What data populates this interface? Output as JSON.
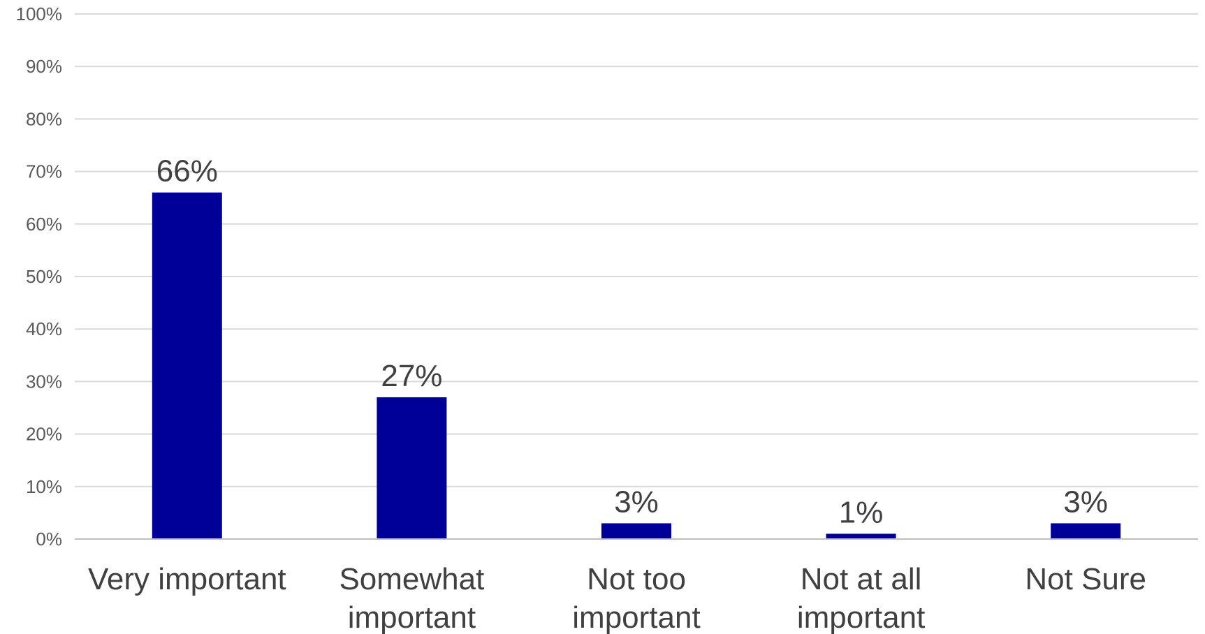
{
  "chart_data": {
    "type": "bar",
    "title": "",
    "xlabel": "",
    "ylabel": "",
    "categories": [
      [
        "Very important"
      ],
      [
        "Somewhat",
        "important"
      ],
      [
        "Not too",
        "important"
      ],
      [
        "Not at all",
        "important"
      ],
      [
        "Not Sure"
      ]
    ],
    "values": [
      66,
      27,
      3,
      1,
      3
    ],
    "data_labels": [
      "66%",
      "27%",
      "3%",
      "1%",
      "3%"
    ],
    "ylim": [
      0,
      100
    ],
    "y_ticks": [
      0,
      10,
      20,
      30,
      40,
      50,
      60,
      70,
      80,
      90,
      100
    ],
    "y_tick_labels": [
      "0%",
      "10%",
      "20%",
      "30%",
      "40%",
      "50%",
      "60%",
      "70%",
      "80%",
      "90%",
      "100%"
    ],
    "grid": true,
    "legend": "none",
    "colors": {
      "bar": "#000099",
      "grid": "#d9d9d9",
      "axis": "#bfbfbf"
    }
  }
}
